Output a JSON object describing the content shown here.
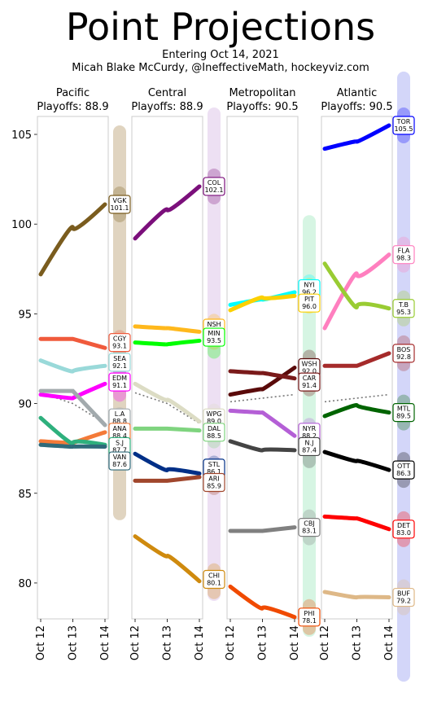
{
  "title": "Point Projections",
  "subtitle_lines": [
    "Entering Oct 14, 2021",
    "Micah Blake McCurdy, @IneffectiveMath, hockeyviz.com"
  ],
  "chart_data": {
    "type": "line",
    "x": [
      "Oct 12",
      "Oct 13",
      "Oct 14"
    ],
    "ylim": [
      78,
      106
    ],
    "yticks": [
      80,
      85,
      90,
      95,
      100,
      105
    ],
    "grid": false,
    "panels": [
      {
        "name": "Pacific",
        "subtitle": "Playoffs: 88.9",
        "playoff_line": [
          90.6,
          90.0,
          88.9
        ],
        "range_bar": {
          "color": "#d8c9b0",
          "min": 83.5,
          "max": 105.5
        },
        "series": [
          {
            "team": "VGK",
            "value": "101.1",
            "color": "#7a5c1e",
            "values": [
              97.2,
              99.8,
              101.1
            ],
            "label_y": 101.1
          },
          {
            "team": "CGY",
            "value": "93.1",
            "color": "#f05a3c",
            "values": [
              93.6,
              93.6,
              93.1
            ],
            "label_y": 93.4
          },
          {
            "team": "SEA",
            "value": "92.1",
            "color": "#99d9d9",
            "values": [
              92.4,
              91.8,
              92.1
            ],
            "label_y": 92.3
          },
          {
            "team": "EDM",
            "value": "91.1",
            "color": "#ff00ff",
            "values": [
              90.5,
              90.3,
              91.1
            ],
            "label_y": 91.2
          },
          {
            "team": "L.A",
            "value": "88.8",
            "color": "#a2aaad",
            "values": [
              90.7,
              90.7,
              88.8
            ],
            "label_y": 89.2
          },
          {
            "team": "ANA",
            "value": "88.4",
            "color": "#f47a38",
            "values": [
              87.9,
              87.8,
              88.4
            ],
            "label_y": 88.4
          },
          {
            "team": "S.J",
            "value": "87.7",
            "color": "#2eb07d",
            "values": [
              89.2,
              87.8,
              87.7
            ],
            "label_y": 87.6
          },
          {
            "team": "VAN",
            "value": "87.6",
            "color": "#2f6a7a",
            "values": [
              87.7,
              87.6,
              87.6
            ],
            "label_y": 86.8
          }
        ]
      },
      {
        "name": "Central",
        "subtitle": "Playoffs: 88.9",
        "playoff_line": [
          90.6,
          90.0,
          88.9
        ],
        "range_bar": {
          "color": "#e8d8f0",
          "min": 79.0,
          "max": 106.5
        },
        "series": [
          {
            "team": "COL",
            "value": "102.1",
            "color": "#7b0f7b",
            "values": [
              99.2,
              100.8,
              102.1
            ],
            "label_y": 102.1
          },
          {
            "team": "NSH",
            "value": "94.0",
            "color": "#ffb81c",
            "values": [
              94.3,
              94.2,
              94.0
            ],
            "label_y": 94.2
          },
          {
            "team": "MIN",
            "value": "93.5",
            "color": "#00ff00",
            "values": [
              93.4,
              93.3,
              93.5
            ],
            "label_y": 93.7
          },
          {
            "team": "WPG",
            "value": "89.0",
            "color": "#dcdcc4",
            "values": [
              91.1,
              90.2,
              89.0
            ],
            "label_y": 89.2
          },
          {
            "team": "DAL",
            "value": "88.5",
            "color": "#7fd47f",
            "values": [
              88.6,
              88.6,
              88.5
            ],
            "label_y": 88.4
          },
          {
            "team": "STL",
            "value": "86.1",
            "color": "#002f87",
            "values": [
              87.2,
              86.3,
              86.1
            ],
            "label_y": 86.4
          },
          {
            "team": "ARI",
            "value": "85.9",
            "color": "#a0462c",
            "values": [
              85.7,
              85.7,
              85.9
            ],
            "label_y": 85.6
          },
          {
            "team": "CHI",
            "value": "80.1",
            "color": "#cf8a0e",
            "values": [
              82.6,
              81.5,
              80.1
            ],
            "label_y": 80.2
          }
        ]
      },
      {
        "name": "Metropolitan",
        "subtitle": "Playoffs: 90.5",
        "playoff_line": [
          90.1,
          90.3,
          90.5
        ],
        "range_bar": {
          "color": "#ccf2dc",
          "min": 77.0,
          "max": 100.5
        },
        "series": [
          {
            "team": "NYI",
            "value": "96.2",
            "color": "#00ffff",
            "values": [
              95.5,
              95.8,
              96.2
            ],
            "label_y": 96.4
          },
          {
            "team": "PIT",
            "value": "96.0",
            "color": "#fcd000",
            "values": [
              95.2,
              95.9,
              96.0
            ],
            "label_y": 95.6
          },
          {
            "team": "WSH",
            "value": "92.0",
            "color": "#5a0a0a",
            "values": [
              90.5,
              90.8,
              92.0
            ],
            "label_y": 92.0
          },
          {
            "team": "CAR",
            "value": "91.4",
            "color": "#7a1a1a",
            "values": [
              91.8,
              91.7,
              91.4
            ],
            "label_y": 91.2
          },
          {
            "team": "NYR",
            "value": "88.2",
            "color": "#b45fd6",
            "values": [
              89.6,
              89.5,
              88.2
            ],
            "label_y": 88.4
          },
          {
            "team": "N.J",
            "value": "87.4",
            "color": "#444444",
            "values": [
              87.9,
              87.4,
              87.4
            ],
            "label_y": 87.6
          },
          {
            "team": "CBJ",
            "value": "83.1",
            "color": "#808080",
            "values": [
              82.9,
              82.9,
              83.1
            ],
            "label_y": 83.1
          },
          {
            "team": "PHI",
            "value": "78.1",
            "color": "#f04a00",
            "values": [
              79.8,
              78.6,
              78.1
            ],
            "label_y": 78.1
          }
        ]
      },
      {
        "name": "Atlantic",
        "subtitle": "Playoffs: 90.5",
        "playoff_line": [
          90.1,
          90.3,
          90.5
        ],
        "range_bar": {
          "color": "#c8ccf8",
          "min": 74.5,
          "max": 108.5
        },
        "series": [
          {
            "team": "TOR",
            "value": "105.5",
            "color": "#0000ff",
            "values": [
              104.2,
              104.6,
              105.5
            ],
            "label_y": 105.5
          },
          {
            "team": "FLA",
            "value": "98.3",
            "color": "#ff7fbf",
            "values": [
              94.2,
              97.2,
              98.3
            ],
            "label_y": 98.3
          },
          {
            "team": "T.B",
            "value": "95.3",
            "color": "#99cc33",
            "values": [
              97.8,
              95.4,
              95.3
            ],
            "label_y": 95.3
          },
          {
            "team": "BOS",
            "value": "92.8",
            "color": "#a52a2a",
            "values": [
              92.1,
              92.1,
              92.8
            ],
            "label_y": 92.8
          },
          {
            "team": "MTL",
            "value": "89.5",
            "color": "#006400",
            "values": [
              89.3,
              89.9,
              89.5
            ],
            "label_y": 89.5
          },
          {
            "team": "OTT",
            "value": "86.3",
            "color": "#000000",
            "values": [
              87.3,
              86.8,
              86.3
            ],
            "label_y": 86.3
          },
          {
            "team": "DET",
            "value": "83.0",
            "color": "#ff0000",
            "values": [
              83.7,
              83.6,
              83.0
            ],
            "label_y": 83.0
          },
          {
            "team": "BUF",
            "value": "79.2",
            "color": "#deb887",
            "values": [
              79.5,
              79.2,
              79.2
            ],
            "label_y": 79.2
          }
        ]
      }
    ]
  }
}
